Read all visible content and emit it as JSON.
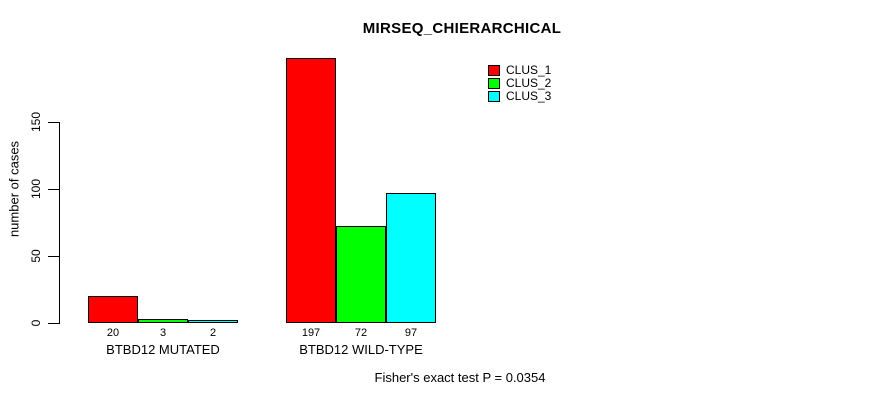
{
  "chart_data": {
    "type": "bar",
    "title": "MIRSEQ_CHIERARCHICAL",
    "ylabel": "number of cases",
    "xlabel": "",
    "ylim": [
      0,
      150
    ],
    "yticks": [
      0,
      50,
      100,
      150
    ],
    "grid": false,
    "legend_position": "top-right",
    "bar_value_labels_shown": true,
    "categories": [
      "BTBD12 MUTATED",
      "BTBD12 WILD-TYPE"
    ],
    "series": [
      {
        "name": "CLUS_1",
        "color": "#ff0000",
        "values": [
          20,
          197
        ]
      },
      {
        "name": "CLUS_2",
        "color": "#00ff00",
        "values": [
          3,
          72
        ]
      },
      {
        "name": "CLUS_3",
        "color": "#00ffff",
        "values": [
          2,
          97
        ]
      }
    ],
    "annotation": "Fisher's exact test P = 0.0354"
  }
}
